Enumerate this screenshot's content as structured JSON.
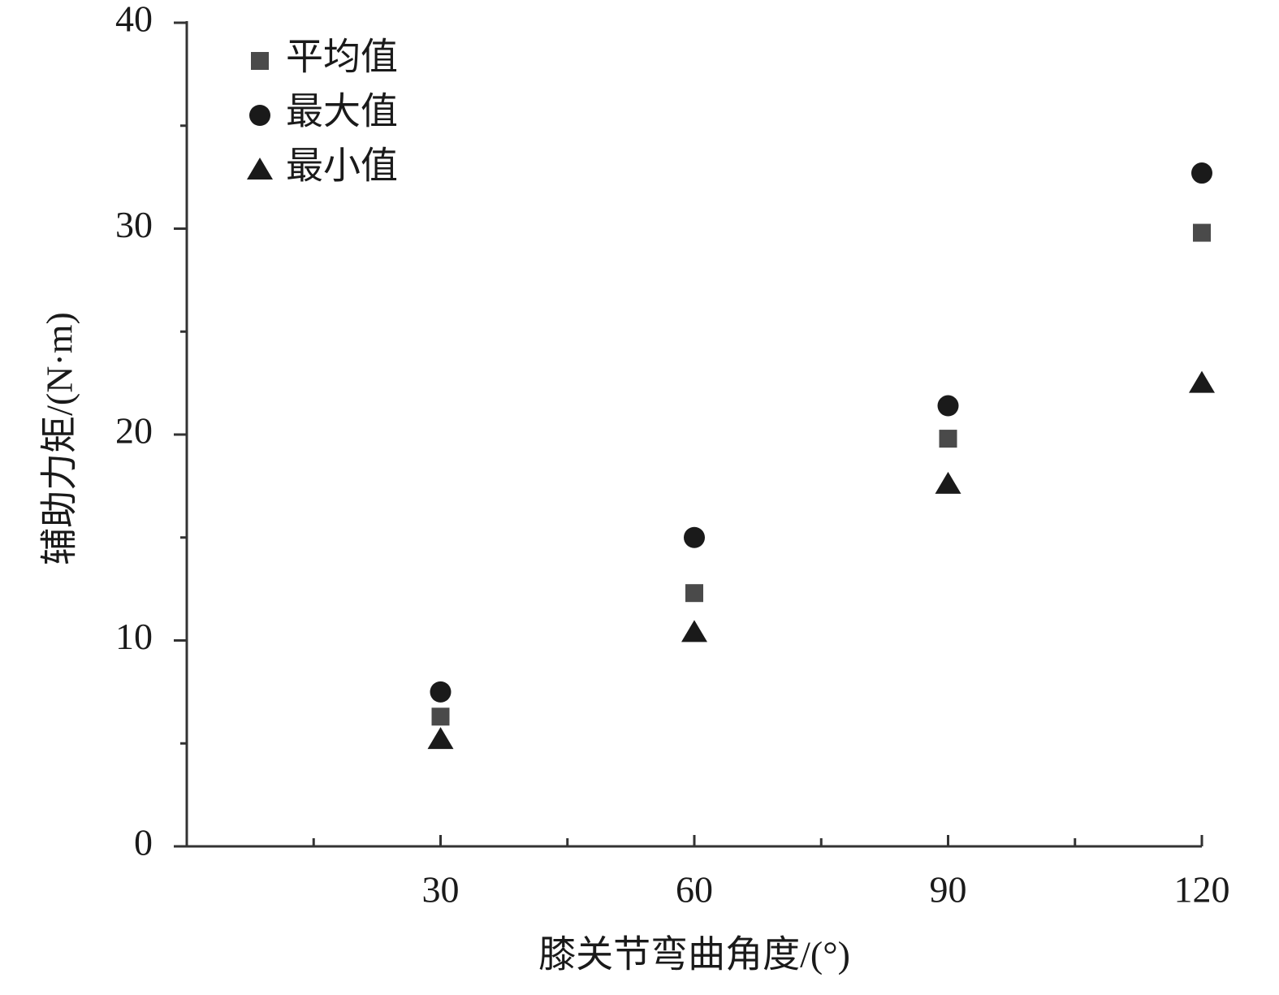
{
  "chart_data": {
    "type": "scatter",
    "xlabel": "膝关节弯曲角度/(°)",
    "ylabel": "辅助力矩/(N·m)",
    "xlim": [
      0,
      120
    ],
    "xticks": [
      30,
      60,
      90,
      120
    ],
    "xminorticks": [
      15,
      45,
      75,
      105
    ],
    "ylim": [
      0,
      40
    ],
    "yticks": [
      0,
      10,
      20,
      30,
      40
    ],
    "yminorticks": [
      5,
      15,
      25,
      35
    ],
    "legend": "upper left",
    "x": [
      30,
      60,
      90,
      120
    ],
    "series": [
      {
        "name": "平均值",
        "color": "#4a4a4a",
        "marker": "square",
        "values": [
          6.3,
          12.3,
          19.8,
          29.8
        ]
      },
      {
        "name": "最大值",
        "color": "#1a1a1a",
        "marker": "circle",
        "values": [
          7.5,
          15.0,
          21.4,
          32.7
        ]
      },
      {
        "name": "最小值",
        "color": "#1a1a1a",
        "marker": "triangle",
        "values": [
          5.2,
          10.4,
          17.6,
          22.5
        ]
      }
    ]
  }
}
